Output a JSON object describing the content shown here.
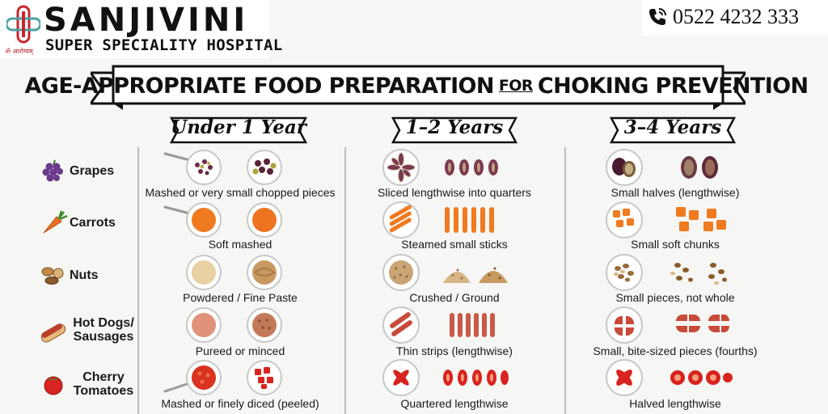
{
  "brand": {
    "name": "SANJIVINI",
    "subtitle": "SUPER SPECIALITY HOSPITAL",
    "tagline": "ॐ आरोग्यम्",
    "phone": "0522 4232 333",
    "accent_red": "#c8262f",
    "accent_blue": "#1f4e8c"
  },
  "header": {
    "title_left": "AGE-APPROPRIATE FOOD PREPARATION",
    "title_for": "FOR",
    "title_right": "CHOKING PREVENTION"
  },
  "columns": [
    {
      "label": "Under 1 Year"
    },
    {
      "label": "1–2 Years"
    },
    {
      "label": "3–4 Years"
    }
  ],
  "rows": [
    {
      "food": "Grapes",
      "icon": "grapes-icon",
      "cells": [
        "Mashed or very small chopped pieces",
        "Sliced lengthwise into quarters",
        "Small halves (lengthwise)"
      ]
    },
    {
      "food": "Carrots",
      "icon": "carrot-icon",
      "cells": [
        "Soft mashed",
        "Steamed small sticks",
        "Small soft chunks"
      ]
    },
    {
      "food": "Nuts",
      "icon": "nuts-icon",
      "cells": [
        "Powdered / Fine Paste",
        "Crushed / Ground",
        "Small pieces, not whole"
      ]
    },
    {
      "food": "Hot Dogs/ Sausages",
      "icon": "sausage-icon",
      "cells": [
        "Pureed or minced",
        "Thin strips (lengthwise)",
        "Small, bite-sized pieces (fourths)"
      ]
    },
    {
      "food": "Cherry Tomatoes",
      "icon": "tomato-icon",
      "cells": [
        "Mashed or finely diced (peeled)",
        "Quartered lengthwise",
        "Halved lengthwise"
      ]
    }
  ]
}
